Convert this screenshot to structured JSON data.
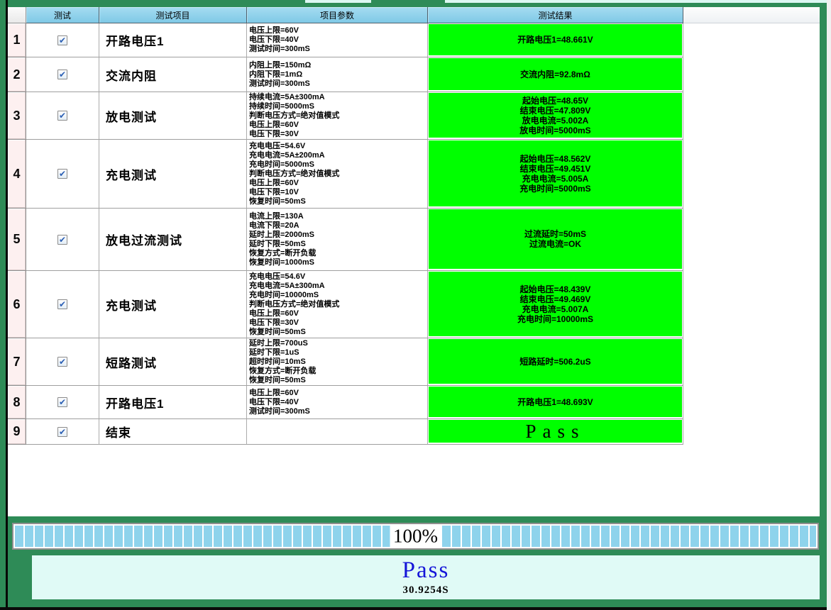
{
  "table": {
    "headers": {
      "test": "测试",
      "item": "测试项目",
      "params": "项目参数",
      "result": "测试结果"
    },
    "rows": [
      {
        "num": "1",
        "checked": true,
        "item": "开路电压1",
        "params": [
          "电压上限=60V",
          "电压下限=40V",
          "测试时间=300mS"
        ],
        "results": [
          "开路电压1=48.661V"
        ],
        "result_style": "normal"
      },
      {
        "num": "2",
        "checked": true,
        "item": "交流内阻",
        "params": [
          "内阻上限=150mΩ",
          "内阻下限=1mΩ",
          "测试时间=300mS"
        ],
        "results": [
          "交流内阻=92.8mΩ"
        ],
        "result_style": "normal"
      },
      {
        "num": "3",
        "checked": true,
        "item": "放电测试",
        "params": [
          "持续电流=5A±300mA",
          "持续时间=5000mS",
          "判断电压方式=绝对值模式",
          "电压上限=60V",
          "电压下限=30V"
        ],
        "results": [
          "起始电压=48.65V",
          "结束电压=47.809V",
          "放电电流=5.002A",
          "放电时间=5000mS"
        ],
        "result_style": "normal"
      },
      {
        "num": "4",
        "checked": true,
        "item": "充电测试",
        "params": [
          "充电电压=54.6V",
          "充电电流=5A±200mA",
          "充电时间=5000mS",
          "判断电压方式=绝对值模式",
          "电压上限=60V",
          "电压下限=10V",
          "恢复时间=50mS"
        ],
        "results": [
          "起始电压=48.562V",
          "结束电压=49.451V",
          "充电电流=5.005A",
          "充电时间=5000mS"
        ],
        "result_style": "normal"
      },
      {
        "num": "5",
        "checked": true,
        "item": "放电过流测试",
        "params": [
          "电流上限=130A",
          "电流下限=20A",
          "延时上限=2000mS",
          "延时下限=50mS",
          "恢复方式=断开负载",
          "恢复时间=1000mS"
        ],
        "results": [
          "过流延时=50mS",
          "过流电流=OK"
        ],
        "result_style": "normal"
      },
      {
        "num": "6",
        "checked": true,
        "item": "充电测试",
        "params": [
          "充电电压=54.6V",
          "充电电流=5A±300mA",
          "充电时间=10000mS",
          "判断电压方式=绝对值模式",
          "电压上限=60V",
          "电压下限=30V",
          "恢复时间=50mS"
        ],
        "results": [
          "起始电压=48.439V",
          "结束电压=49.469V",
          "充电电流=5.007A",
          "充电时间=10000mS"
        ],
        "result_style": "normal"
      },
      {
        "num": "7",
        "checked": true,
        "item": "短路测试",
        "params": [
          "延时上限=700uS",
          "延时下限=1uS",
          "超时时间=10mS",
          "恢复方式=断开负载",
          "恢复时间=50mS"
        ],
        "results": [
          "短路延时=506.2uS"
        ],
        "result_style": "normal"
      },
      {
        "num": "8",
        "checked": true,
        "item": "开路电压1",
        "params": [
          "电压上限=60V",
          "电压下限=40V",
          "测试时间=300mS"
        ],
        "results": [
          "开路电压1=48.693V"
        ],
        "result_style": "normal"
      },
      {
        "num": "9",
        "checked": true,
        "item": "结束",
        "params": [],
        "results": [
          "Pass"
        ],
        "result_style": "big"
      }
    ]
  },
  "progress": {
    "percent": 100,
    "label": "100%"
  },
  "status": {
    "verdict": "Pass",
    "elapsed": "30.9254S"
  },
  "icons": {
    "checkmark": "✔"
  },
  "colors": {
    "frame_green": "#2e8b57",
    "header_blue": "#8fd0e8",
    "result_green": "#00ff00",
    "row_header_pink": "#fdf0f0",
    "status_bg": "#e0faf6",
    "verdict_blue": "#1414d8",
    "progress_segment": "#8ed3ec"
  }
}
